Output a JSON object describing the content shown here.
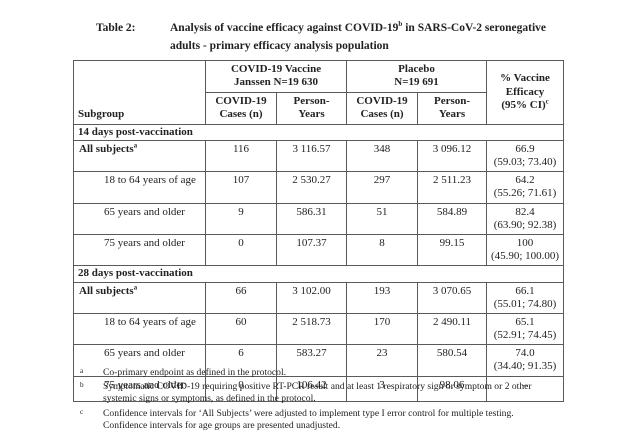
{
  "title": {
    "label": "Table 2:",
    "line1_pre": "Analysis of vaccine efficacy against COVID-19",
    "line1_sup": "b",
    "line1_post": " in SARS-CoV-2 seronegative",
    "line2": "adults - primary efficacy analysis population"
  },
  "table": {
    "headers": {
      "subgroup": "Subgroup",
      "vaccine_group_line1": "COVID-19 Vaccine",
      "vaccine_group_line2": "Janssen N=19 630",
      "placebo_group_line1": "Placebo",
      "placebo_group_line2": "N=19 691",
      "cases_line1": "COVID-19",
      "cases_line2": "Cases (n)",
      "person_years_line1": "Person-",
      "person_years_line2": "Years",
      "efficacy_line1": "% Vaccine",
      "efficacy_line2": "Efficacy",
      "efficacy_line3": "(95% CI)",
      "efficacy_sup": "c"
    },
    "sections": [
      {
        "header": "14 days post-vaccination",
        "rows": [
          {
            "subgroup": "All subjects",
            "sup": "a",
            "bold": true,
            "indent": false,
            "cells": [
              "116",
              "3 116.57",
              "348",
              "3 096.12"
            ],
            "efficacy": [
              "66.9",
              "(59.03; 73.40)"
            ]
          },
          {
            "subgroup": "18 to 64 years of age",
            "sup": "",
            "bold": false,
            "indent": true,
            "cells": [
              "107",
              "2 530.27",
              "297",
              "2 511.23"
            ],
            "efficacy": [
              "64.2",
              "(55.26; 71.61)"
            ]
          },
          {
            "subgroup": "65 years and older",
            "sup": "",
            "bold": false,
            "indent": true,
            "cells": [
              "9",
              "586.31",
              "51",
              "584.89"
            ],
            "efficacy": [
              "82.4",
              "(63.90; 92.38)"
            ]
          },
          {
            "subgroup": "75 years and older",
            "sup": "",
            "bold": false,
            "indent": true,
            "cells": [
              "0",
              "107.37",
              "8",
              "99.15"
            ],
            "efficacy": [
              "100",
              "(45.90; 100.00)"
            ]
          }
        ]
      },
      {
        "header": "28 days post-vaccination",
        "rows": [
          {
            "subgroup": "All subjects",
            "sup": "a",
            "bold": true,
            "indent": false,
            "cells": [
              "66",
              "3 102.00",
              "193",
              "3 070.65"
            ],
            "efficacy": [
              "66.1",
              "(55.01; 74.80)"
            ]
          },
          {
            "subgroup": "18 to 64 years of age",
            "sup": "",
            "bold": false,
            "indent": true,
            "cells": [
              "60",
              "2 518.73",
              "170",
              "2 490.11"
            ],
            "efficacy": [
              "65.1",
              "(52.91; 74.45)"
            ]
          },
          {
            "subgroup": "65 years and older",
            "sup": "",
            "bold": false,
            "indent": true,
            "cells": [
              "6",
              "583.27",
              "23",
              "580.54"
            ],
            "efficacy": [
              "74.0",
              "(34.40; 91.35)"
            ]
          },
          {
            "subgroup": "75 years and older",
            "sup": "",
            "bold": false,
            "indent": true,
            "cells": [
              "0",
              "106.42",
              "3",
              "98.06"
            ],
            "efficacy": [
              "–"
            ]
          }
        ]
      }
    ]
  },
  "footnotes": [
    {
      "marker": "a",
      "text": "Co-primary endpoint as defined in the protocol."
    },
    {
      "marker": "b",
      "text": "Symptomatic COVID-19 requiring positive RT-PCR result and at least 1 respiratory sign or symptom or 2 other systemic signs or symptoms, as defined in the protocol."
    },
    {
      "marker": "c",
      "text": "Confidence intervals for ‘All Subjects’ were adjusted to implement type I error control for multiple testing. Confidence intervals for age groups are presented unadjusted."
    }
  ]
}
